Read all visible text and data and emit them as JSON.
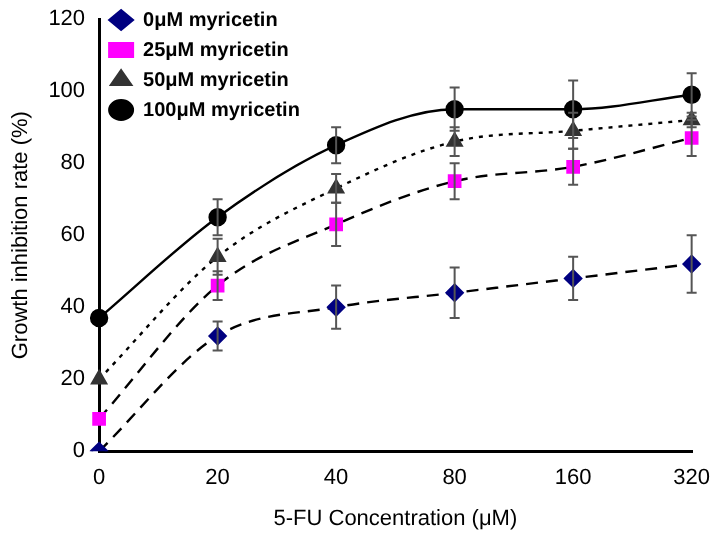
{
  "chart_data": {
    "type": "line",
    "xlabel": "5-FU Concentration (μM)",
    "ylabel": "Growth inhibition rate (%)",
    "categories": [
      "0",
      "20",
      "40",
      "80",
      "160",
      "320"
    ],
    "ylim": [
      0,
      120
    ],
    "yticks": [
      0,
      20,
      40,
      60,
      80,
      100,
      120
    ],
    "grid": false,
    "legend": "top left",
    "series": [
      {
        "name": "0μM myricetin",
        "color": "#000080",
        "marker": "diamond",
        "line_style": "dashed",
        "values": [
          0,
          32,
          40,
          44,
          48,
          52
        ],
        "errors": [
          null,
          4,
          6,
          7,
          6,
          8
        ]
      },
      {
        "name": "25μM myricetin",
        "color": "#ff00ff",
        "marker": "square",
        "line_style": "dashed",
        "values": [
          9,
          46,
          63,
          75,
          79,
          87
        ],
        "errors": [
          null,
          4,
          6,
          5,
          5,
          5
        ]
      },
      {
        "name": "50μM myricetin",
        "color": "#333333",
        "marker": "triangle",
        "line_style": "dotted",
        "values": [
          20,
          54,
          73,
          86,
          89,
          92
        ],
        "errors": [
          null,
          5,
          4,
          4,
          5,
          2
        ]
      },
      {
        "name": "100μM myricetin",
        "color": "#000000",
        "marker": "circle",
        "line_style": "solid",
        "values": [
          37,
          65,
          85,
          95,
          95,
          99
        ],
        "errors": [
          null,
          5,
          5,
          6,
          8,
          6
        ]
      }
    ]
  }
}
